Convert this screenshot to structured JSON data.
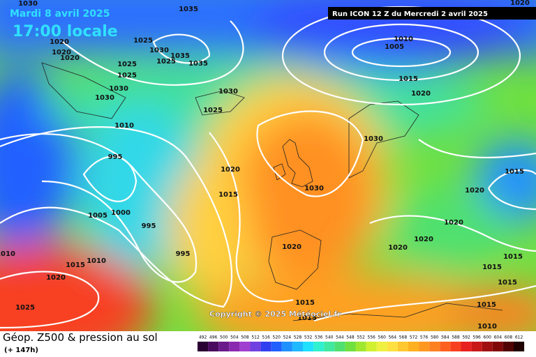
{
  "header": {
    "date": "Mardi 8 avril 2025",
    "time": "17:00 locale",
    "run": "Run ICON 12 Z du Mercredi 2 avril 2025"
  },
  "footer": {
    "title": "Géop. Z500 & pression au sol",
    "lead": "(+ 147h)",
    "copyright": "Copyright © 2025 Météociel.fr"
  },
  "legend": {
    "labels": [
      "492",
      "496",
      "500",
      "504",
      "508",
      "512",
      "516",
      "520",
      "524",
      "528",
      "532",
      "536",
      "540",
      "544",
      "548",
      "552",
      "556",
      "560",
      "564",
      "568",
      "572",
      "576",
      "580",
      "584",
      "588",
      "592",
      "596",
      "600",
      "604",
      "608",
      "612"
    ],
    "colors": [
      "#2a0033",
      "#4a0a5e",
      "#6a1a8a",
      "#8a2ab0",
      "#a040d0",
      "#7040e0",
      "#3040f0",
      "#2060ff",
      "#2090ff",
      "#20b8ff",
      "#20e0ff",
      "#30f0d0",
      "#40e8a0",
      "#50e070",
      "#70e040",
      "#a0e830",
      "#d0f030",
      "#f0f040",
      "#ffe040",
      "#ffc830",
      "#ffb020",
      "#ff9820",
      "#ff8020",
      "#ff6020",
      "#f84020",
      "#e82020",
      "#c81818",
      "#a01010",
      "#800808",
      "#500404",
      "#200000"
    ]
  },
  "isobar_labels": [
    "1030",
    "1035",
    "1020",
    "1025",
    "1030",
    "1035",
    "1025",
    "1035",
    "1020",
    "1020",
    "1020",
    "1025",
    "1025",
    "1030",
    "1030",
    "1030",
    "1025",
    "1010",
    "995",
    "1020",
    "1015",
    "1030",
    "1000",
    "1005",
    "995",
    "995",
    "1015",
    "1010",
    "1020",
    "1025",
    "1010",
    "1020",
    "1015",
    "1015",
    "1010",
    "1005",
    "1015",
    "1020",
    "1030",
    "1015",
    "1020",
    "1020",
    "1020",
    "1020",
    "1015",
    "1015",
    "1015",
    "1015",
    "1010"
  ]
}
